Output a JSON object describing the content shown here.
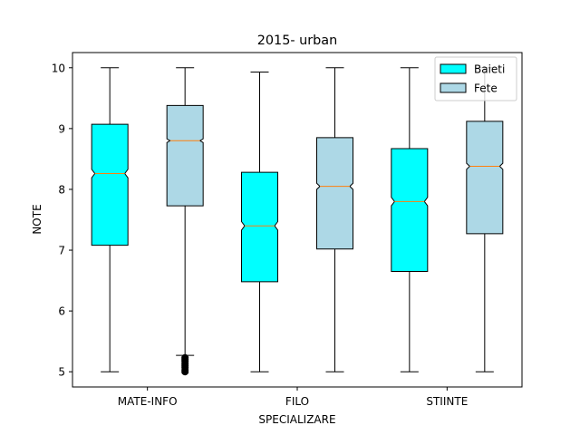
{
  "chart_data": {
    "type": "box",
    "title": "2015- urban",
    "xlabel": "SPECIALIZARE",
    "ylabel": "NOTE",
    "ylim": [
      4.75,
      10.25
    ],
    "yticks": [
      5,
      6,
      7,
      8,
      9,
      10
    ],
    "categories": [
      "MATE-INFO",
      "FILO",
      "STIINTE"
    ],
    "notched": true,
    "legend_position": "top-right",
    "series": [
      {
        "name": "Baieti",
        "color": "#00ffff",
        "boxes": [
          {
            "category": "MATE-INFO",
            "whisker_low": 5.0,
            "q1": 7.08,
            "median": 8.26,
            "q3": 9.07,
            "whisker_high": 10.0,
            "notch_low": 8.19,
            "notch_high": 8.33,
            "outliers": []
          },
          {
            "category": "FILO",
            "whisker_low": 5.0,
            "q1": 6.48,
            "median": 7.4,
            "q3": 8.28,
            "whisker_high": 9.93,
            "notch_low": 7.33,
            "notch_high": 7.47,
            "outliers": []
          },
          {
            "category": "STIINTE",
            "whisker_low": 5.0,
            "q1": 6.65,
            "median": 7.8,
            "q3": 8.67,
            "whisker_high": 10.0,
            "notch_low": 7.73,
            "notch_high": 7.87,
            "outliers": []
          }
        ]
      },
      {
        "name": "Fete",
        "color": "#add8e6",
        "boxes": [
          {
            "category": "MATE-INFO",
            "whisker_low": 5.27,
            "q1": 7.73,
            "median": 8.8,
            "q3": 9.38,
            "whisker_high": 10.0,
            "notch_low": 8.77,
            "notch_high": 8.83,
            "outliers": [
              5.0,
              5.03,
              5.07,
              5.1,
              5.13,
              5.17,
              5.2,
              5.23
            ]
          },
          {
            "category": "FILO",
            "whisker_low": 5.0,
            "q1": 7.02,
            "median": 8.05,
            "q3": 8.85,
            "whisker_high": 10.0,
            "notch_low": 8.0,
            "notch_high": 8.1,
            "outliers": []
          },
          {
            "category": "STIINTE",
            "whisker_low": 5.0,
            "q1": 7.27,
            "median": 8.38,
            "q3": 9.12,
            "whisker_high": 10.0,
            "notch_low": 8.33,
            "notch_high": 8.43,
            "outliers": []
          }
        ]
      }
    ]
  }
}
